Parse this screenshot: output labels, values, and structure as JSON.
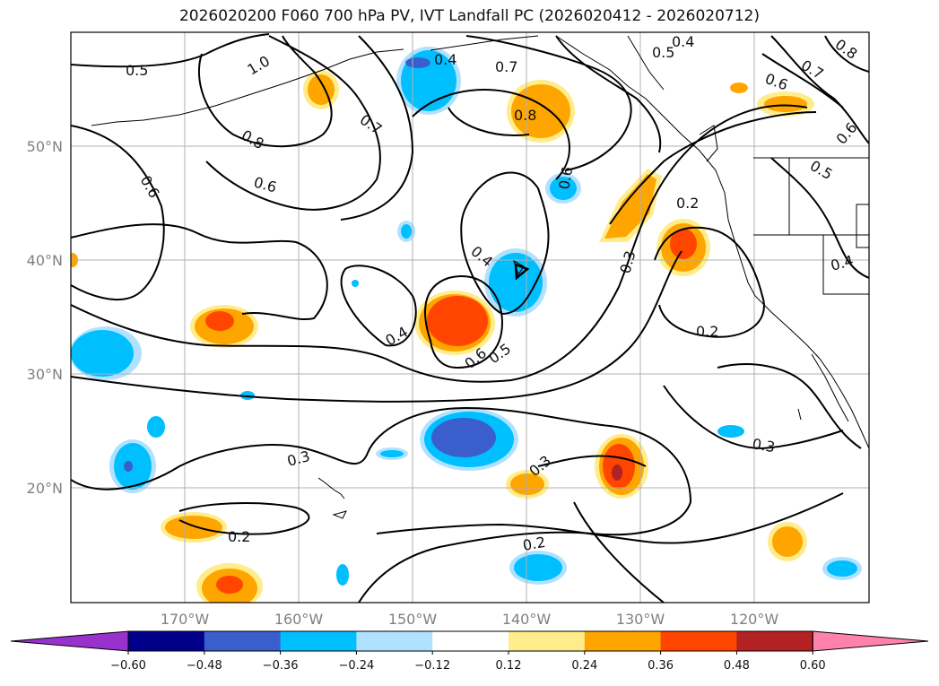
{
  "title": "2026020200 F060 700 hPa PV, IVT Landfall PC (2026020412 - 2026020712)",
  "axes": {
    "lon_ticks": [
      "170°W",
      "160°W",
      "150°W",
      "140°W",
      "130°W",
      "120°W"
    ],
    "lat_ticks": [
      "50°N",
      "40°N",
      "30°N",
      "20°N"
    ]
  },
  "contour_labels": [
    "0.5",
    "1.0",
    "0.4",
    "0.7",
    "0.5",
    "0.4",
    "0.8",
    "0.7",
    "0.8",
    "0.6",
    "0.7",
    "0.6",
    "0.6",
    "0.8",
    "0.6",
    "0.6",
    "0.5",
    "0.2",
    "0.4",
    "0.4",
    "0.3",
    "0.4",
    "0.6",
    "0.5",
    "0.2",
    "0.3",
    "0.3",
    "0.3",
    "0.2",
    "0.2"
  ],
  "colorbar": {
    "levels": [
      "−0.60",
      "−0.48",
      "−0.36",
      "−0.24",
      "−0.12",
      "0.12",
      "0.24",
      "0.36",
      "0.48",
      "0.60"
    ],
    "colors": [
      "#9932cc",
      "#00008b",
      "#3a5fcd",
      "#00bfff",
      "#b0e2ff",
      "#ffffff",
      "#ffec8b",
      "#ffa500",
      "#ff4500",
      "#b22222",
      "#ff82ab"
    ]
  }
}
